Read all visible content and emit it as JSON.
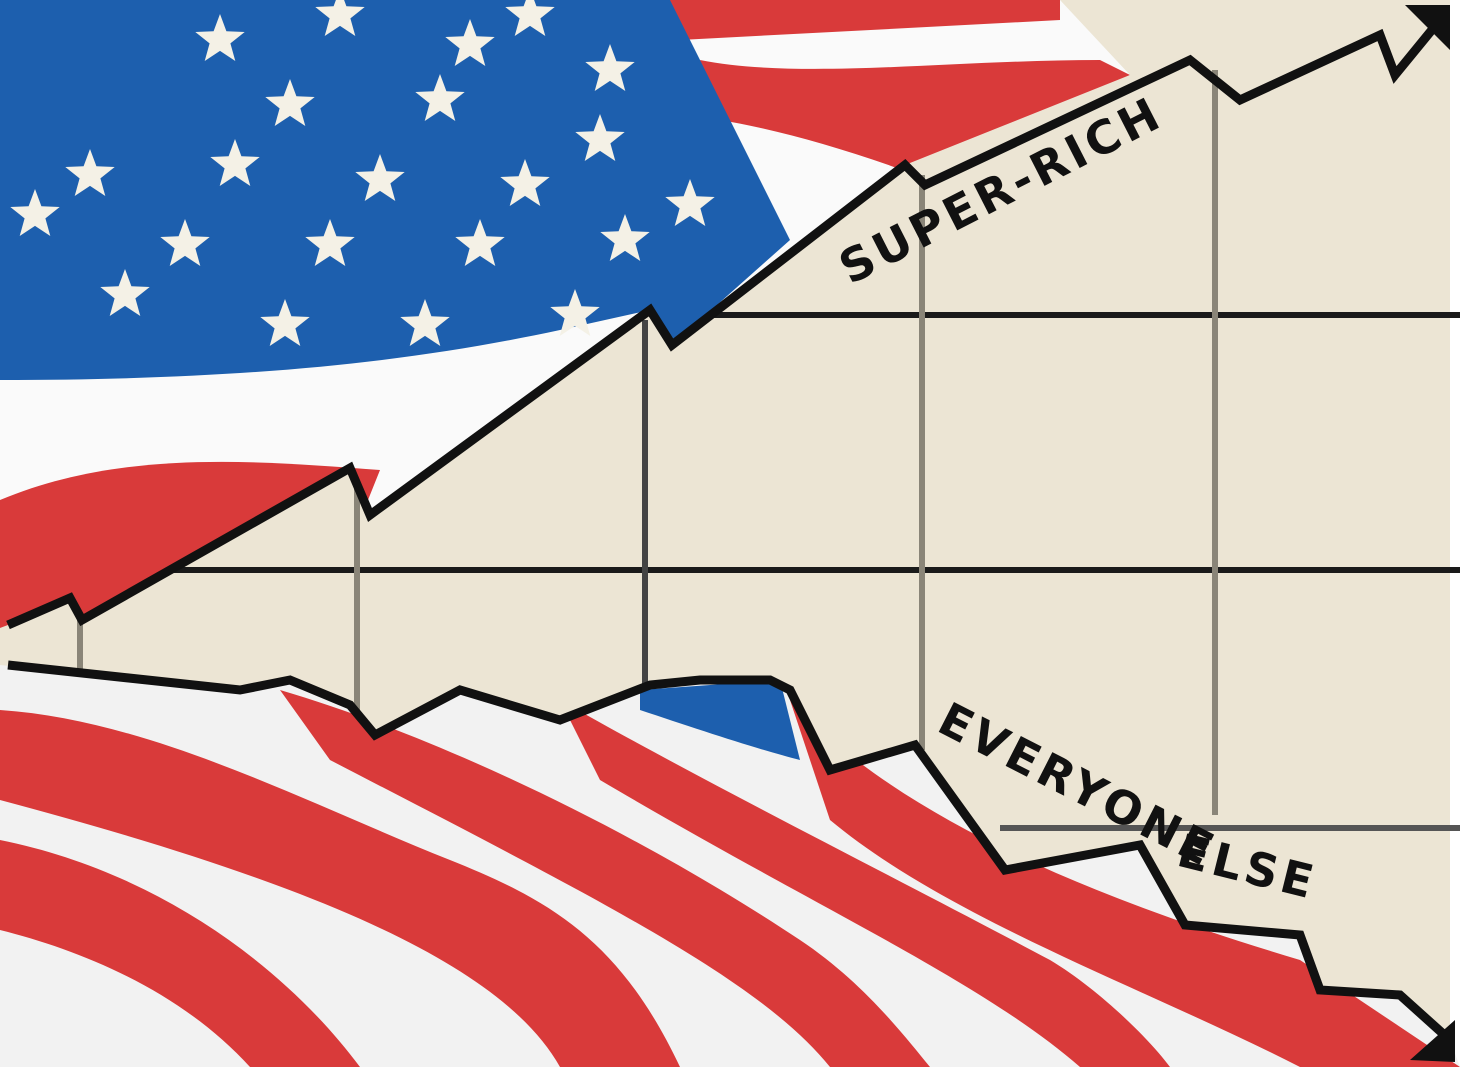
{
  "labels": [
    "SUPER-RICH",
    "EVERYONE",
    "ELSE"
  ]
}
